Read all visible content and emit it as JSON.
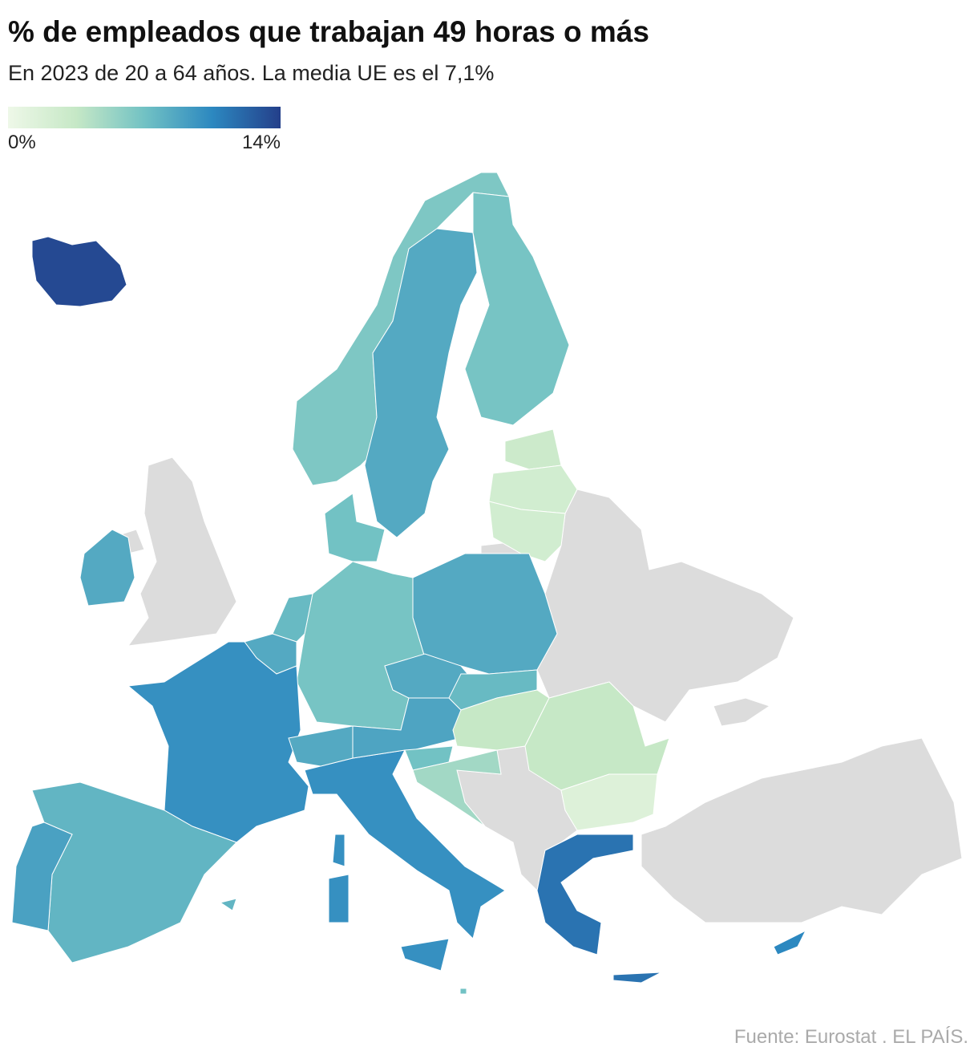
{
  "chart_data": {
    "type": "choropleth",
    "title": "% de empleados que trabajan 49 horas o más",
    "subtitle": "En 2023 de 20 a 64 años. La media UE es el 7,1%",
    "clim": [
      0,
      14
    ],
    "legend_ticks": [
      {
        "value": 0,
        "label": "0%"
      },
      {
        "value": 14,
        "label": "14%"
      }
    ],
    "color_scale": [
      "#eef8e8",
      "#c6e8c6",
      "#72c2c4",
      "#2c88c0",
      "#243f8a"
    ],
    "values": [
      13.5,
      6.5,
      8.5,
      6.8,
      3,
      2.5,
      2.5,
      8.5,
      6.8,
      7,
      7.5,
      8.5,
      10,
      7.8,
      9,
      8.5,
      10,
      8.8,
      8.5,
      7.5,
      3.5,
      7,
      5,
      3.5,
      1.5,
      11.5,
      10.5,
      8.5,
      7
    ],
    "source": "Fuente: Eurostat . EL PAÍS."
  }
}
